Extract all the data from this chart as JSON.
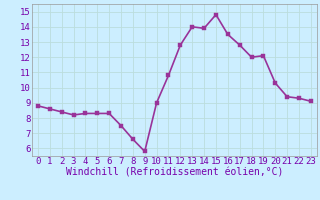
{
  "x": [
    0,
    1,
    2,
    3,
    4,
    5,
    6,
    7,
    8,
    9,
    10,
    11,
    12,
    13,
    14,
    15,
    16,
    17,
    18,
    19,
    20,
    21,
    22,
    23
  ],
  "y": [
    8.8,
    8.6,
    8.4,
    8.2,
    8.3,
    8.3,
    8.3,
    7.5,
    6.6,
    5.8,
    9.0,
    10.8,
    12.8,
    14.0,
    13.9,
    14.8,
    13.5,
    12.8,
    12.0,
    12.1,
    10.3,
    9.4,
    9.3,
    9.1
  ],
  "line_color": "#993399",
  "marker_color": "#993399",
  "bg_color": "#cceeff",
  "grid_color": "#bbdddd",
  "xlabel": "Windchill (Refroidissement éolien,°C)",
  "xlim": [
    -0.5,
    23.5
  ],
  "ylim": [
    5.5,
    15.5
  ],
  "yticks": [
    6,
    7,
    8,
    9,
    10,
    11,
    12,
    13,
    14,
    15
  ],
  "xticks": [
    0,
    1,
    2,
    3,
    4,
    5,
    6,
    7,
    8,
    9,
    10,
    11,
    12,
    13,
    14,
    15,
    16,
    17,
    18,
    19,
    20,
    21,
    22,
    23
  ],
  "xlabel_fontsize": 7.0,
  "tick_fontsize": 6.5,
  "line_width": 1.2,
  "marker_size": 2.5
}
